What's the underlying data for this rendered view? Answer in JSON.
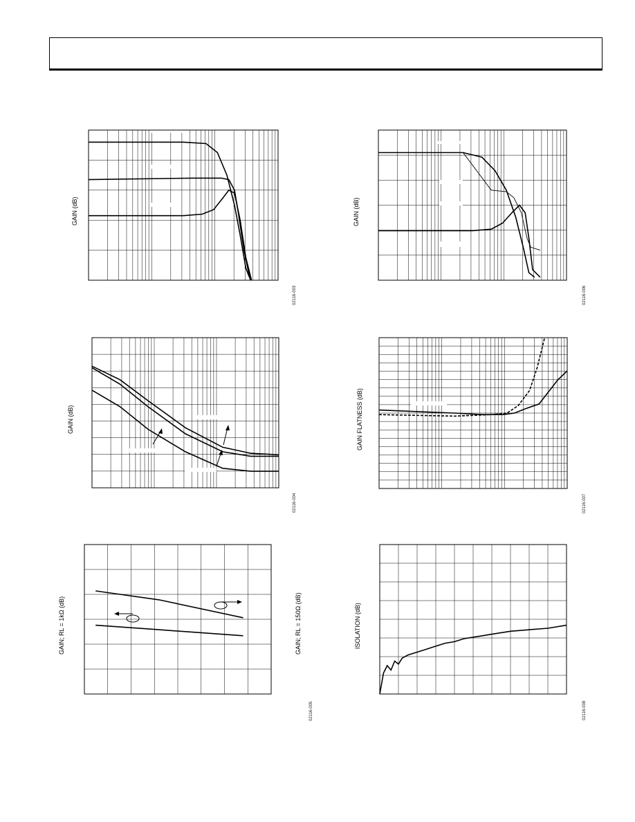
{
  "page": {
    "header": ""
  },
  "chart_data": [
    {
      "id": "c1",
      "type": "line",
      "ylabel": "GAIN (dB)",
      "code": "02116-003",
      "xscale": "log",
      "grid": true,
      "series": [
        {
          "points": [
            [
              0.0,
              0.08
            ],
            [
              0.5,
              0.08
            ],
            [
              0.62,
              0.09
            ],
            [
              0.68,
              0.15
            ],
            [
              0.73,
              0.3
            ],
            [
              0.77,
              0.5
            ],
            [
              0.8,
              0.7
            ],
            [
              0.83,
              0.92
            ],
            [
              0.855,
              1.0
            ]
          ]
        },
        {
          "points": [
            [
              0.0,
              0.33
            ],
            [
              0.55,
              0.32
            ],
            [
              0.7,
              0.32
            ],
            [
              0.74,
              0.33
            ],
            [
              0.77,
              0.4
            ],
            [
              0.79,
              0.55
            ],
            [
              0.82,
              0.8
            ],
            [
              0.85,
              0.98
            ]
          ]
        },
        {
          "points": [
            [
              0.0,
              0.57
            ],
            [
              0.5,
              0.57
            ],
            [
              0.6,
              0.56
            ],
            [
              0.66,
              0.53
            ],
            [
              0.71,
              0.45
            ],
            [
              0.74,
              0.4
            ],
            [
              0.77,
              0.42
            ],
            [
              0.8,
              0.6
            ],
            [
              0.83,
              0.85
            ],
            [
              0.86,
              1.0
            ]
          ]
        }
      ]
    },
    {
      "id": "c2",
      "type": "line",
      "ylabel": "GAIN (dB)",
      "code": "02116-006",
      "xscale": "log",
      "grid": true,
      "series": [
        {
          "style": "thick",
          "points": [
            [
              0.0,
              0.15
            ],
            [
              0.45,
              0.15
            ],
            [
              0.55,
              0.18
            ],
            [
              0.62,
              0.27
            ],
            [
              0.68,
              0.4
            ],
            [
              0.73,
              0.58
            ],
            [
              0.77,
              0.78
            ],
            [
              0.8,
              0.95
            ],
            [
              0.83,
              0.98
            ]
          ]
        },
        {
          "style": "thin",
          "points": [
            [
              0.0,
              0.15
            ],
            [
              0.45,
              0.15
            ],
            [
              0.6,
              0.4
            ],
            [
              0.68,
              0.41
            ],
            [
              0.72,
              0.45
            ],
            [
              0.76,
              0.55
            ],
            [
              0.79,
              0.72
            ],
            [
              0.81,
              0.78
            ],
            [
              0.86,
              0.8
            ]
          ]
        },
        {
          "style": "thick",
          "points": [
            [
              0.0,
              0.67
            ],
            [
              0.5,
              0.67
            ],
            [
              0.6,
              0.66
            ],
            [
              0.66,
              0.62
            ],
            [
              0.71,
              0.55
            ],
            [
              0.75,
              0.5
            ],
            [
              0.78,
              0.55
            ],
            [
              0.8,
              0.72
            ],
            [
              0.82,
              0.93
            ],
            [
              0.86,
              0.98
            ]
          ]
        }
      ]
    },
    {
      "id": "c3",
      "type": "line",
      "ylabel": "GAIN (dB)",
      "code": "02116-004",
      "xscale": "log",
      "grid": true,
      "series": [
        {
          "points": [
            [
              0.0,
              0.19
            ],
            [
              0.15,
              0.28
            ],
            [
              0.3,
              0.42
            ],
            [
              0.5,
              0.6
            ],
            [
              0.7,
              0.73
            ],
            [
              0.85,
              0.77
            ],
            [
              1.0,
              0.78
            ]
          ]
        },
        {
          "points": [
            [
              0.0,
              0.2
            ],
            [
              0.15,
              0.31
            ],
            [
              0.3,
              0.46
            ],
            [
              0.5,
              0.64
            ],
            [
              0.7,
              0.76
            ],
            [
              0.85,
              0.79
            ],
            [
              1.0,
              0.79
            ]
          ]
        },
        {
          "points": [
            [
              0.0,
              0.35
            ],
            [
              0.15,
              0.46
            ],
            [
              0.3,
              0.61
            ],
            [
              0.5,
              0.76
            ],
            [
              0.7,
              0.87
            ],
            [
              0.85,
              0.89
            ],
            [
              1.0,
              0.89
            ]
          ]
        }
      ]
    },
    {
      "id": "c4",
      "type": "line",
      "ylabel": "GAIN FLATNESS (dB)",
      "code": "02116-007",
      "xscale": "log",
      "grid": true,
      "series": [
        {
          "style": "solid",
          "points": [
            [
              0.0,
              0.48
            ],
            [
              0.4,
              0.5
            ],
            [
              0.55,
              0.51
            ],
            [
              0.66,
              0.51
            ],
            [
              0.72,
              0.5
            ],
            [
              0.78,
              0.47
            ],
            [
              0.85,
              0.44
            ],
            [
              0.9,
              0.36
            ],
            [
              0.95,
              0.28
            ],
            [
              1.0,
              0.22
            ]
          ]
        },
        {
          "style": "dash",
          "points": [
            [
              0.0,
              0.51
            ],
            [
              0.4,
              0.52
            ],
            [
              0.6,
              0.51
            ],
            [
              0.68,
              0.5
            ],
            [
              0.74,
              0.45
            ],
            [
              0.8,
              0.35
            ],
            [
              0.84,
              0.2
            ],
            [
              0.88,
              0.0
            ]
          ]
        }
      ]
    },
    {
      "id": "c5",
      "type": "line",
      "ylabel": "GAIN; RL = 1kΩ (dB)",
      "ylabel_right": "GAIN; RL = 150Ω (dB)",
      "code": "02116-005",
      "grid": true,
      "series": [
        {
          "points": [
            [
              0.06,
              0.31
            ],
            [
              0.4,
              0.37
            ],
            [
              0.85,
              0.49
            ]
          ]
        },
        {
          "points": [
            [
              0.06,
              0.54
            ],
            [
              0.4,
              0.57
            ],
            [
              0.85,
              0.61
            ]
          ]
        }
      ]
    },
    {
      "id": "c6",
      "type": "line",
      "ylabel": "ISOLATION (dB)",
      "code": "02116-008",
      "grid": true,
      "series": [
        {
          "points": [
            [
              0.0,
              1.0
            ],
            [
              0.02,
              0.86
            ],
            [
              0.04,
              0.81
            ],
            [
              0.06,
              0.84
            ],
            [
              0.08,
              0.78
            ],
            [
              0.1,
              0.8
            ],
            [
              0.12,
              0.76
            ],
            [
              0.15,
              0.74
            ],
            [
              0.2,
              0.72
            ],
            [
              0.25,
              0.7
            ],
            [
              0.3,
              0.68
            ],
            [
              0.35,
              0.66
            ],
            [
              0.4,
              0.65
            ],
            [
              0.45,
              0.63
            ],
            [
              0.5,
              0.62
            ],
            [
              0.55,
              0.61
            ],
            [
              0.6,
              0.6
            ],
            [
              0.7,
              0.58
            ],
            [
              0.8,
              0.57
            ],
            [
              0.9,
              0.56
            ],
            [
              1.0,
              0.54
            ]
          ]
        }
      ]
    }
  ]
}
